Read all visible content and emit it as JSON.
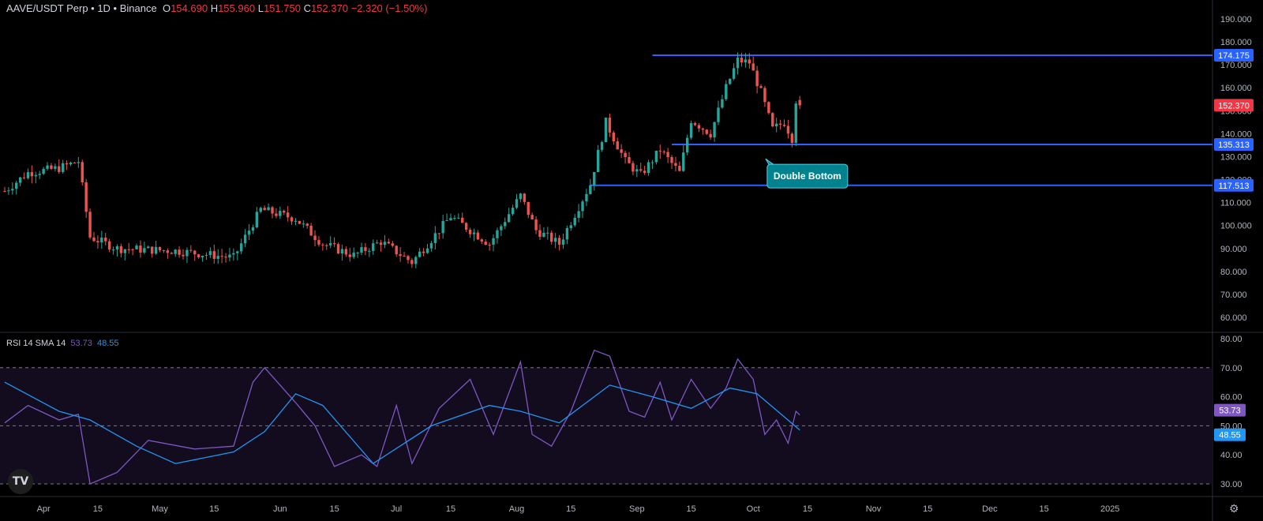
{
  "header": {
    "symbol": "AAVE/USDT Perp • 1D • Binance",
    "o_label": "O",
    "o_value": "154.690",
    "h_label": "H",
    "h_value": "155.960",
    "l_label": "L",
    "l_value": "151.750",
    "c_label": "C",
    "c_value": "152.370",
    "change": "−2.320 (−1.50%)"
  },
  "rsi_header": {
    "label": "RSI 14 SMA 14",
    "rsi_value": "53.73",
    "sma_value": "48.55"
  },
  "colors": {
    "up": "#26a69a",
    "down": "#ef5350",
    "level_line": "#2962ff",
    "rsi": "#7e57c2",
    "rsi_sma": "#2196f3",
    "annotation_bg": "#00838f"
  },
  "logo_text": "TV",
  "icons": {
    "settings": "gear-icon"
  },
  "chart_data": [
    {
      "type": "candlestick",
      "title": "AAVE/USDT Perp • 1D • Binance",
      "ylim": [
        60,
        190
      ],
      "y_ticks": [
        "190.000",
        "180.000",
        "170.000",
        "160.000",
        "150.000",
        "140.000",
        "130.000",
        "120.000",
        "110.000",
        "100.000",
        "90.000",
        "80.000",
        "70.000",
        "60.000"
      ],
      "x_ticks": [
        "Apr",
        "15",
        "May",
        "15",
        "Jun",
        "15",
        "Jul",
        "15",
        "Aug",
        "15",
        "Sep",
        "15",
        "Oct",
        "15",
        "Nov",
        "15",
        "Dec",
        "15",
        "2025"
      ],
      "date_range": [
        "2024-03-22",
        "2024-10-13"
      ],
      "key_points": [
        {
          "date": "2024-03-22",
          "value": 115
        },
        {
          "date": "2024-03-28",
          "value": 123
        },
        {
          "date": "2024-04-05",
          "value": 125
        },
        {
          "date": "2024-04-10",
          "value": 128
        },
        {
          "date": "2024-04-13",
          "value": 95
        },
        {
          "date": "2024-04-20",
          "value": 90
        },
        {
          "date": "2024-05-05",
          "value": 89
        },
        {
          "date": "2024-05-20",
          "value": 86
        },
        {
          "date": "2024-05-27",
          "value": 107
        },
        {
          "date": "2024-06-05",
          "value": 103
        },
        {
          "date": "2024-06-12",
          "value": 92
        },
        {
          "date": "2024-06-20",
          "value": 87
        },
        {
          "date": "2024-06-27",
          "value": 93
        },
        {
          "date": "2024-07-05",
          "value": 84
        },
        {
          "date": "2024-07-15",
          "value": 104
        },
        {
          "date": "2024-07-25",
          "value": 92
        },
        {
          "date": "2024-08-02",
          "value": 113
        },
        {
          "date": "2024-08-06",
          "value": 98
        },
        {
          "date": "2024-08-12",
          "value": 92
        },
        {
          "date": "2024-08-20",
          "value": 118
        },
        {
          "date": "2024-08-24",
          "value": 145
        },
        {
          "date": "2024-08-29",
          "value": 128
        },
        {
          "date": "2024-09-02",
          "value": 122
        },
        {
          "date": "2024-09-07",
          "value": 133
        },
        {
          "date": "2024-09-12",
          "value": 123
        },
        {
          "date": "2024-09-15",
          "value": 146
        },
        {
          "date": "2024-09-20",
          "value": 140
        },
        {
          "date": "2024-09-24",
          "value": 160
        },
        {
          "date": "2024-09-27",
          "value": 172
        },
        {
          "date": "2024-09-30",
          "value": 171
        },
        {
          "date": "2024-10-03",
          "value": 158
        },
        {
          "date": "2024-10-06",
          "value": 142
        },
        {
          "date": "2024-10-09",
          "value": 145
        },
        {
          "date": "2024-10-11",
          "value": 138
        },
        {
          "date": "2024-10-12",
          "value": 154.69
        },
        {
          "date": "2024-10-13",
          "value": 152.37
        }
      ],
      "last_candle": {
        "o": 154.69,
        "h": 155.96,
        "l": 151.75,
        "c": 152.37
      },
      "levels": [
        {
          "label": "174.175",
          "value": 174.175,
          "from_date": "2024-09-05"
        },
        {
          "label": "135.313",
          "value": 135.313,
          "from_date": "2024-09-10"
        },
        {
          "label": "117.513",
          "value": 117.513,
          "from_date": "2024-08-20"
        }
      ],
      "price_label": {
        "label": "152.370",
        "value": 152.37
      },
      "annotation": {
        "text": "Double Bottom",
        "date": "2024-10-05",
        "value": 127
      }
    },
    {
      "type": "line",
      "title": "RSI 14 SMA 14",
      "ylim": [
        25,
        82
      ],
      "y_ticks": [
        "80.00",
        "70.00",
        "60.00",
        "50.00",
        "40.00",
        "30.00"
      ],
      "bands": [
        70,
        50,
        30
      ],
      "series": [
        {
          "name": "RSI",
          "points": [
            [
              "2024-03-22",
              51
            ],
            [
              "2024-03-28",
              57
            ],
            [
              "2024-04-05",
              52
            ],
            [
              "2024-04-10",
              54
            ],
            [
              "2024-04-13",
              30
            ],
            [
              "2024-04-20",
              34
            ],
            [
              "2024-04-28",
              45
            ],
            [
              "2024-05-10",
              42
            ],
            [
              "2024-05-20",
              43
            ],
            [
              "2024-05-25",
              65
            ],
            [
              "2024-05-28",
              70
            ],
            [
              "2024-06-05",
              58
            ],
            [
              "2024-06-10",
              50
            ],
            [
              "2024-06-15",
              36
            ],
            [
              "2024-06-22",
              40
            ],
            [
              "2024-06-26",
              36
            ],
            [
              "2024-07-01",
              57
            ],
            [
              "2024-07-05",
              37
            ],
            [
              "2024-07-12",
              56
            ],
            [
              "2024-07-20",
              66
            ],
            [
              "2024-07-26",
              47
            ],
            [
              "2024-08-02",
              72
            ],
            [
              "2024-08-05",
              47
            ],
            [
              "2024-08-10",
              43
            ],
            [
              "2024-08-15",
              55
            ],
            [
              "2024-08-21",
              76
            ],
            [
              "2024-08-25",
              74
            ],
            [
              "2024-08-30",
              55
            ],
            [
              "2024-09-03",
              53
            ],
            [
              "2024-09-07",
              65
            ],
            [
              "2024-09-10",
              52
            ],
            [
              "2024-09-15",
              66
            ],
            [
              "2024-09-20",
              56
            ],
            [
              "2024-09-24",
              63
            ],
            [
              "2024-09-27",
              73
            ],
            [
              "2024-10-01",
              66
            ],
            [
              "2024-10-04",
              47
            ],
            [
              "2024-10-07",
              52
            ],
            [
              "2024-10-10",
              44
            ],
            [
              "2024-10-12",
              55
            ],
            [
              "2024-10-13",
              53.73
            ]
          ]
        },
        {
          "name": "RSI-based MA",
          "points": [
            [
              "2024-03-22",
              65
            ],
            [
              "2024-04-05",
              55
            ],
            [
              "2024-04-13",
              52
            ],
            [
              "2024-04-25",
              43
            ],
            [
              "2024-05-05",
              37
            ],
            [
              "2024-05-20",
              41
            ],
            [
              "2024-05-28",
              48
            ],
            [
              "2024-06-05",
              61
            ],
            [
              "2024-06-12",
              57
            ],
            [
              "2024-06-25",
              37
            ],
            [
              "2024-07-10",
              50
            ],
            [
              "2024-07-25",
              57
            ],
            [
              "2024-08-02",
              55
            ],
            [
              "2024-08-12",
              51
            ],
            [
              "2024-08-25",
              64
            ],
            [
              "2024-09-05",
              60
            ],
            [
              "2024-09-15",
              56
            ],
            [
              "2024-09-25",
              63
            ],
            [
              "2024-10-02",
              61
            ],
            [
              "2024-10-13",
              48.55
            ]
          ]
        }
      ],
      "value_labels": [
        {
          "label": "53.73",
          "value": 53.73,
          "series": "RSI"
        },
        {
          "label": "48.55",
          "value": 48.55,
          "series": "RSI-based MA"
        }
      ]
    }
  ],
  "annotation_text": "Double Bottom"
}
